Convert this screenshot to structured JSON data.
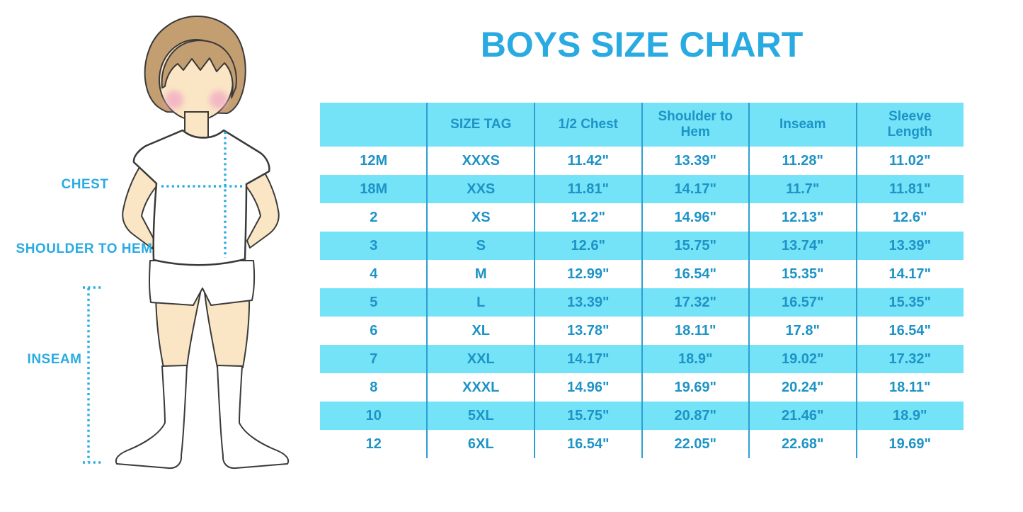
{
  "title": "BOYS SIZE CHART",
  "chart_data": {
    "type": "table",
    "title": "BOYS SIZE CHART",
    "columns": [
      "",
      "SIZE TAG",
      "1/2 Chest",
      "Shoulder to Hem",
      "Inseam",
      "Sleeve Length"
    ],
    "rows": [
      [
        "12M",
        "XXXS",
        "11.42\"",
        "13.39\"",
        "11.28\"",
        "11.02\""
      ],
      [
        "18M",
        "XXS",
        "11.81\"",
        "14.17\"",
        "11.7\"",
        "11.81\""
      ],
      [
        "2",
        "XS",
        "12.2\"",
        "14.96\"",
        "12.13\"",
        "12.6\""
      ],
      [
        "3",
        "S",
        "12.6\"",
        "15.75\"",
        "13.74\"",
        "13.39\""
      ],
      [
        "4",
        "M",
        "12.99\"",
        "16.54\"",
        "15.35\"",
        "14.17\""
      ],
      [
        "5",
        "L",
        "13.39\"",
        "17.32\"",
        "16.57\"",
        "15.35\""
      ],
      [
        "6",
        "XL",
        "13.78\"",
        "18.11\"",
        "17.8\"",
        "16.54\""
      ],
      [
        "7",
        "XXL",
        "14.17\"",
        "18.9\"",
        "19.02\"",
        "17.32\""
      ],
      [
        "8",
        "XXXL",
        "14.96\"",
        "19.69\"",
        "20.24\"",
        "18.11\""
      ],
      [
        "10",
        "5XL",
        "15.75\"",
        "20.87\"",
        "21.46\"",
        "18.9\""
      ],
      [
        "12",
        "6XL",
        "16.54\"",
        "22.05\"",
        "22.68\"",
        "19.69\""
      ]
    ],
    "units": "inches",
    "striping": "header and alternate data rows highlighted cyan",
    "grid": "vertical column dividers only, no horizontal rules",
    "legend_position": "none"
  },
  "diagram": {
    "chest_label": "CHEST",
    "shoulder_to_hem_label": "SHOULDER TO HEM",
    "inseam_label": "INSEAM"
  },
  "colors": {
    "accent_blue": "#29abe2",
    "row_cyan": "#74e3f8",
    "divider_blue": "#2d9fd2",
    "table_text_blue": "#1d93c6",
    "skin": "#fae6c4",
    "hair": "#c39e71",
    "cheek_pink": "#f2b0c4",
    "outline": "#3a3a3a"
  }
}
